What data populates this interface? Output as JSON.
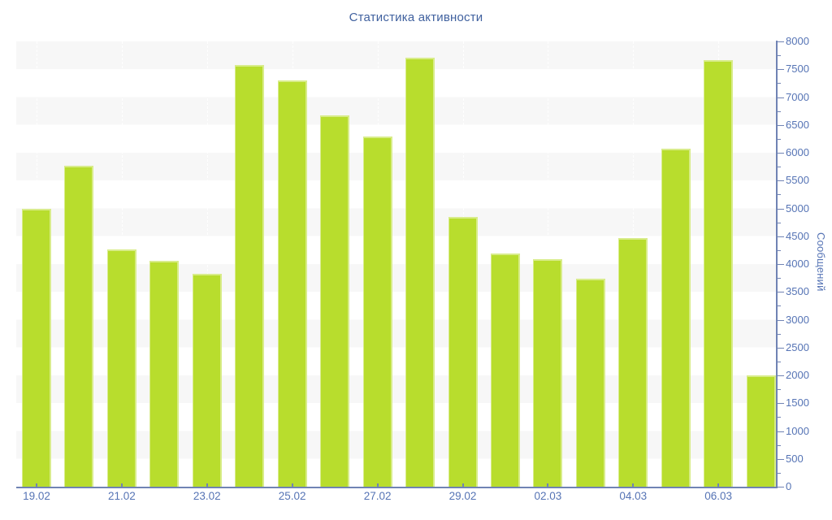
{
  "chart_data": {
    "type": "bar",
    "title": "Статистика активности",
    "y_axis_title": "Сообщений",
    "x_tick_labels": [
      "19.02",
      "21.02",
      "23.02",
      "25.02",
      "27.02",
      "29.02",
      "02.03",
      "04.03",
      "06.03"
    ],
    "bars": [
      {
        "x_label": "19.02",
        "value": 5000
      },
      {
        "x_label": "",
        "value": 5760
      },
      {
        "x_label": "21.02",
        "value": 4270
      },
      {
        "x_label": "",
        "value": 4060
      },
      {
        "x_label": "23.02",
        "value": 3830
      },
      {
        "x_label": "",
        "value": 7570
      },
      {
        "x_label": "25.02",
        "value": 7300
      },
      {
        "x_label": "",
        "value": 6670
      },
      {
        "x_label": "27.02",
        "value": 6290
      },
      {
        "x_label": "",
        "value": 7710
      },
      {
        "x_label": "29.02",
        "value": 4840
      },
      {
        "x_label": "",
        "value": 4190
      },
      {
        "x_label": "02.03",
        "value": 4090
      },
      {
        "x_label": "",
        "value": 3730
      },
      {
        "x_label": "04.03",
        "value": 4470
      },
      {
        "x_label": "",
        "value": 6080
      },
      {
        "x_label": "06.03",
        "value": 7670
      },
      {
        "x_label": "",
        "value": 2000
      }
    ],
    "ylim": [
      0,
      8000
    ],
    "y_major_tick_step": 500,
    "y_minor_tick_step": 250,
    "grid": "horizontal alternating shaded bands every 500, dashed light vertical lines at labeled dates",
    "legend": "none",
    "axis_side": "right",
    "colors": {
      "bar_fill": "#b8dd2d",
      "bar_edge_highlight": "#d8ec8a",
      "band_shade": "#f7f7f7",
      "background": "#ffffff",
      "axis_line": "#7083b4",
      "tick_label": "#5674b5",
      "title_text": "#40619f"
    }
  }
}
